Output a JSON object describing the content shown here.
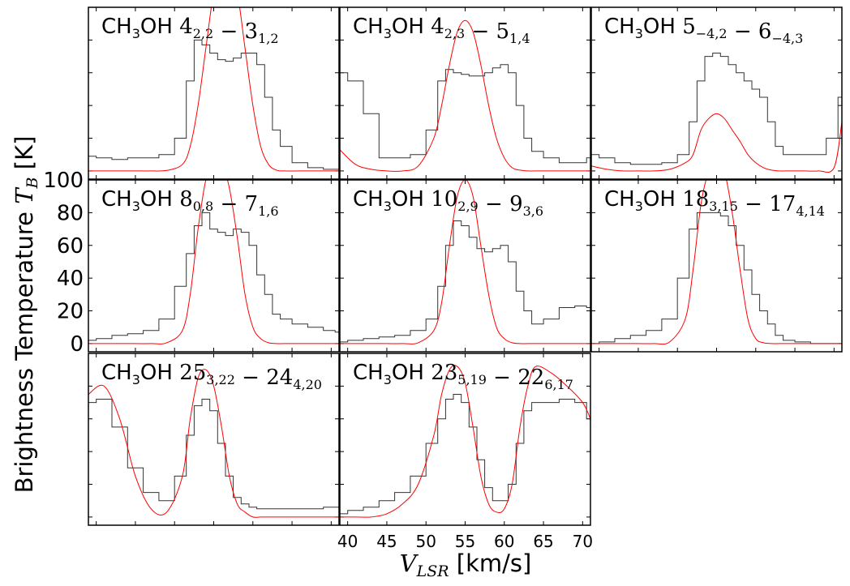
{
  "figure": {
    "ylabel_prefix": "Brightness Temperature ",
    "ylabel_sym": "T",
    "ylabel_sub": "B",
    "ylabel_unit": " [K]",
    "xlabel_sym": "V",
    "xlabel_sub": "LSR",
    "xlabel_unit": " [km/s]",
    "colors": {
      "observed": "#333333",
      "model": "#ff0000",
      "axes": "#000000"
    }
  },
  "chart_data": [
    {
      "type": "line",
      "panel": "CH3OH 4(2,2)-3(1,2)",
      "label": {
        "mol": "CH",
        "mol_sub": "3",
        "mol_tail": "OH ",
        "parts": [
          [
            "4",
            "2,2"
          ],
          [
            "3",
            "1,2"
          ]
        ]
      },
      "xlim": [
        39,
        71
      ],
      "ylim": [
        -5,
        100
      ],
      "xticks": [
        40,
        45,
        50,
        55,
        60,
        65,
        70
      ],
      "yticks": [
        0,
        20,
        40,
        60,
        80,
        100
      ],
      "x": [
        39,
        41,
        43,
        45,
        47,
        49,
        51,
        52,
        53,
        54,
        55,
        56,
        57,
        58,
        59,
        60,
        61,
        62,
        63,
        64,
        66,
        68,
        70,
        71
      ],
      "observed": [
        9,
        8,
        7,
        8,
        8,
        10,
        20,
        55,
        80,
        77,
        72,
        68,
        67,
        69,
        72,
        72,
        65,
        45,
        25,
        15,
        5,
        2,
        1,
        1
      ],
      "model": [
        0,
        0,
        0,
        0,
        0,
        0.3,
        4,
        15,
        40,
        75,
        110,
        130,
        130,
        110,
        75,
        40,
        15,
        4,
        0.5,
        0,
        0,
        0,
        0,
        0
      ]
    },
    {
      "type": "line",
      "panel": "CH3OH 4(2,3)-5(1,4)",
      "label": {
        "mol": "CH",
        "mol_sub": "3",
        "mol_tail": "OH ",
        "parts": [
          [
            "4",
            "2,3"
          ],
          [
            "5",
            "1,4"
          ]
        ]
      },
      "xlim": [
        39,
        71
      ],
      "ylim": [
        -5,
        100
      ],
      "x": [
        39,
        41,
        43,
        45,
        47,
        49,
        51,
        52,
        53,
        54,
        55,
        56,
        57,
        58,
        59,
        60,
        61,
        62,
        63,
        64,
        66,
        68,
        70,
        71
      ],
      "observed": [
        60,
        55,
        35,
        8,
        8,
        10,
        25,
        55,
        62,
        60,
        59,
        58,
        58,
        60,
        63,
        65,
        60,
        40,
        20,
        12,
        8,
        5,
        5,
        8
      ],
      "model": [
        13,
        4,
        1,
        0,
        0,
        3,
        20,
        40,
        65,
        85,
        92,
        85,
        65,
        40,
        20,
        8,
        2,
        0.5,
        0,
        0,
        0,
        0,
        0,
        0
      ]
    },
    {
      "type": "line",
      "panel": "CH3OH 5(-4,2)-6(-4,3)",
      "label": {
        "mol": "CH",
        "mol_sub": "3",
        "mol_tail": "OH ",
        "parts": [
          [
            "5",
            "−4,2"
          ],
          [
            "6",
            "−4,3"
          ]
        ]
      },
      "xlim": [
        39,
        71
      ],
      "ylim": [
        -5,
        100
      ],
      "x": [
        39,
        41,
        43,
        45,
        47,
        49,
        51,
        52,
        53,
        54,
        55,
        56,
        57,
        58,
        59,
        60,
        61,
        62,
        63,
        64,
        66,
        68,
        70,
        71
      ],
      "observed": [
        10,
        8,
        5,
        4,
        4,
        5,
        10,
        30,
        55,
        70,
        72,
        70,
        65,
        60,
        55,
        50,
        45,
        30,
        15,
        10,
        10,
        10,
        20,
        45
      ],
      "model": [
        3,
        1,
        0,
        0,
        0,
        1,
        5,
        10,
        25,
        32,
        35,
        32,
        25,
        18,
        10,
        5,
        2,
        0.5,
        0,
        0,
        0,
        0,
        2,
        30
      ]
    },
    {
      "type": "line",
      "panel": "CH3OH 8(0,8)-7(1,6)",
      "label": {
        "mol": "CH",
        "mol_sub": "3",
        "mol_tail": "OH ",
        "parts": [
          [
            "8",
            "0,8"
          ],
          [
            "7",
            "1,6"
          ]
        ]
      },
      "xlim": [
        39,
        71
      ],
      "ylim": [
        -5,
        100
      ],
      "x": [
        39,
        41,
        43,
        45,
        47,
        49,
        51,
        52,
        53,
        54,
        55,
        56,
        57,
        58,
        59,
        60,
        61,
        62,
        63,
        64,
        66,
        68,
        70,
        71
      ],
      "observed": [
        2,
        3,
        5,
        6,
        8,
        15,
        35,
        55,
        72,
        80,
        70,
        68,
        66,
        70,
        68,
        60,
        42,
        30,
        18,
        15,
        12,
        10,
        8,
        7
      ],
      "model": [
        0,
        0,
        0,
        0,
        0,
        0.5,
        8,
        30,
        70,
        100,
        110,
        110,
        95,
        65,
        30,
        10,
        3,
        0.5,
        0,
        0,
        0,
        0,
        0,
        0
      ]
    },
    {
      "type": "line",
      "panel": "CH3OH 10(2,9)-9(3,6)",
      "label": {
        "mol": "CH",
        "mol_sub": "3",
        "mol_tail": "OH ",
        "parts": [
          [
            "10",
            "2,9"
          ],
          [
            "9",
            "3,6"
          ]
        ]
      },
      "xlim": [
        39,
        71
      ],
      "ylim": [
        -5,
        100
      ],
      "x": [
        39,
        41,
        43,
        45,
        47,
        49,
        51,
        52,
        53,
        54,
        55,
        56,
        57,
        58,
        59,
        60,
        61,
        62,
        63,
        64,
        66,
        68,
        70,
        71
      ],
      "observed": [
        1,
        2,
        3,
        4,
        5,
        8,
        15,
        35,
        60,
        75,
        72,
        65,
        58,
        56,
        58,
        60,
        50,
        32,
        20,
        12,
        15,
        22,
        23,
        22
      ],
      "model": [
        0,
        0,
        0,
        0,
        0,
        0.5,
        8,
        25,
        60,
        90,
        100,
        90,
        60,
        30,
        10,
        3,
        0.5,
        0,
        0,
        0,
        0,
        0,
        0,
        0
      ]
    },
    {
      "type": "line",
      "panel": "CH3OH 18(3,15)-17(4,14)",
      "label": {
        "mol": "CH",
        "mol_sub": "3",
        "mol_tail": "OH ",
        "parts": [
          [
            "18",
            "3,15"
          ],
          [
            "17",
            "4,14"
          ]
        ]
      },
      "xlim": [
        39,
        71
      ],
      "ylim": [
        -5,
        100
      ],
      "x": [
        39,
        41,
        43,
        45,
        47,
        49,
        51,
        52,
        53,
        54,
        55,
        56,
        57,
        58,
        59,
        60,
        61,
        62,
        63,
        64,
        66,
        68,
        70,
        71
      ],
      "observed": [
        0,
        1,
        3,
        5,
        8,
        15,
        40,
        70,
        80,
        80,
        80,
        78,
        72,
        60,
        45,
        30,
        20,
        12,
        5,
        2,
        1,
        0,
        0,
        0
      ],
      "model": [
        0,
        0,
        0,
        0,
        0,
        1,
        15,
        45,
        85,
        105,
        110,
        105,
        80,
        45,
        15,
        3,
        0.5,
        0,
        0,
        0,
        0,
        0,
        0,
        0
      ]
    },
    {
      "type": "line",
      "panel": "CH3OH 25(3,22)-24(4,20)",
      "label": {
        "mol": "CH",
        "mol_sub": "3",
        "mol_tail": "OH ",
        "parts": [
          [
            "25",
            "3,22"
          ],
          [
            "24",
            "4,20"
          ]
        ]
      },
      "xlim": [
        39,
        71
      ],
      "ylim": [
        -5,
        100
      ],
      "x": [
        39,
        41,
        43,
        45,
        47,
        49,
        51,
        52,
        53,
        54,
        55,
        56,
        57,
        58,
        59,
        60,
        61,
        62,
        63,
        64,
        66,
        68,
        70,
        71
      ],
      "observed": [
        70,
        72,
        55,
        30,
        15,
        10,
        25,
        50,
        68,
        72,
        65,
        45,
        25,
        12,
        8,
        6,
        5,
        5,
        5,
        5,
        5,
        5,
        6,
        6
      ],
      "model": [
        75,
        80,
        60,
        25,
        5,
        3,
        25,
        60,
        85,
        90,
        80,
        55,
        25,
        8,
        3,
        0,
        0,
        0,
        0,
        0,
        0,
        0,
        0,
        0
      ]
    },
    {
      "type": "line",
      "panel": "CH3OH 23(5,19)-22(6,17)",
      "label": {
        "mol": "CH",
        "mol_sub": "3",
        "mol_tail": "OH ",
        "parts": [
          [
            "23",
            "5,19"
          ],
          [
            "22",
            "6,17"
          ]
        ]
      },
      "xlim": [
        39,
        71
      ],
      "ylim": [
        -5,
        100
      ],
      "x": [
        39,
        41,
        43,
        45,
        47,
        49,
        51,
        52,
        53,
        54,
        55,
        56,
        57,
        58,
        59,
        60,
        61,
        62,
        63,
        64,
        66,
        68,
        70,
        71
      ],
      "observed": [
        2,
        4,
        6,
        10,
        15,
        25,
        45,
        60,
        72,
        75,
        70,
        55,
        35,
        18,
        10,
        10,
        20,
        45,
        65,
        70,
        70,
        72,
        70,
        60
      ],
      "model": [
        0,
        0,
        0,
        2,
        8,
        20,
        50,
        75,
        90,
        92,
        82,
        55,
        25,
        8,
        3,
        5,
        20,
        55,
        80,
        92,
        88,
        80,
        70,
        60
      ]
    }
  ]
}
